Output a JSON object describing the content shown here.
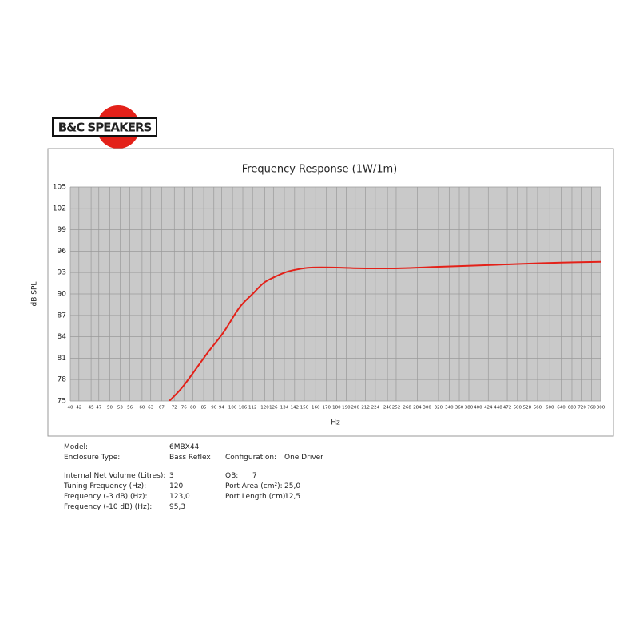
{
  "logo": "B&C SPEAKERS",
  "chart_data": {
    "type": "line",
    "title": "Frequency Response (1W/1m)",
    "x_label": "Hz",
    "y_label": "dB SPL",
    "x": [
      70,
      76,
      87,
      95,
      104,
      112,
      119,
      126,
      136,
      146,
      156,
      180,
      205,
      256,
      320,
      403,
      500,
      640,
      800
    ],
    "values": [
      75,
      77.2,
      81.8,
      84.6,
      88.1,
      90,
      91.5,
      92.3,
      93.1,
      93.5,
      93.7,
      93.7,
      93.6,
      93.6,
      93.8,
      94,
      94.2,
      94.4,
      94.5
    ],
    "color": "#e32119",
    "xscale": "log",
    "xlim": [
      40,
      800
    ],
    "xticks": [
      40,
      42,
      45,
      47,
      50,
      53,
      56,
      60,
      63,
      67,
      72,
      76,
      80,
      85,
      90,
      94,
      100,
      106,
      112,
      120,
      126,
      134,
      142,
      150,
      160,
      170,
      180,
      190,
      200,
      212,
      224,
      240,
      252,
      268,
      284,
      300,
      320,
      340,
      360,
      380,
      400,
      424,
      448,
      472,
      500,
      528,
      560,
      600,
      640,
      680,
      720,
      760,
      800
    ],
    "ylim": [
      75,
      105
    ],
    "yticks": [
      75,
      78,
      81,
      84,
      87,
      90,
      93,
      96,
      99,
      102,
      105
    ],
    "grid": true
  },
  "specs": {
    "left": [
      {
        "label": "Model:",
        "value": "6MBX44"
      },
      {
        "label": "Enclosure Type:",
        "value": "Bass Reflex"
      },
      {
        "label": "Internal Net Volume (Litres):",
        "value": "3"
      },
      {
        "label": "Tuning Frequency (Hz):",
        "value": "120"
      },
      {
        "label": "Frequency (-3 dB) (Hz):",
        "value": "123,0"
      },
      {
        "label": "Frequency (-10 dB) (Hz):",
        "value": "95,3"
      }
    ],
    "right": [
      {
        "label": "Configuration:",
        "value": "One Driver"
      },
      {
        "label": "QB:",
        "value": "7"
      },
      {
        "label": "Port Area (cm²):",
        "value": "25,0"
      },
      {
        "label": "Port Length (cm):",
        "value": "12,5"
      }
    ]
  }
}
